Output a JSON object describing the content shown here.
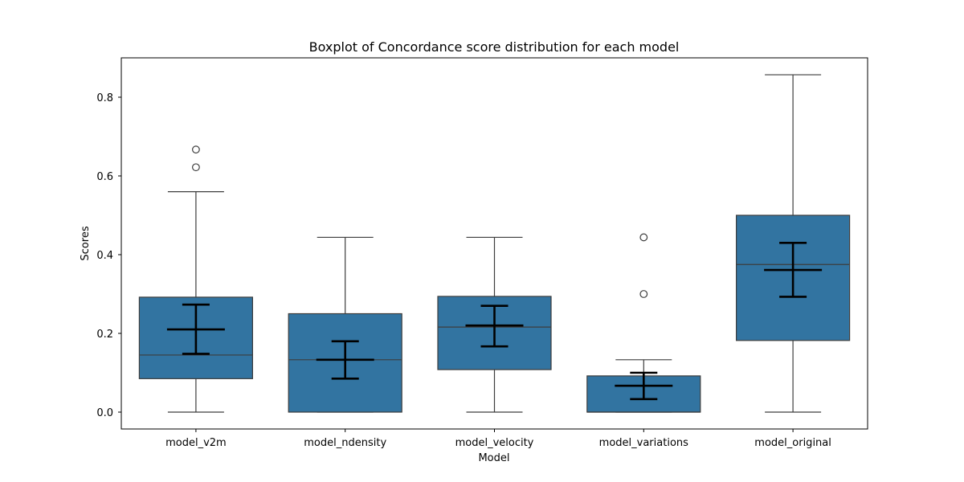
{
  "chart_data": {
    "type": "box",
    "title": "Boxplot of Concordance score distribution for each model",
    "xlabel": "Model",
    "ylabel": "Scores",
    "ylim": [
      -0.042,
      0.9
    ],
    "yticks": [
      "0.0",
      "0.2",
      "0.4",
      "0.6",
      "0.8"
    ],
    "ytick_values": [
      0.0,
      0.2,
      0.4,
      0.6,
      0.8
    ],
    "box_color": "#3274a1",
    "categories": [
      "model_v2m",
      "model_ndensity",
      "model_velocity",
      "model_variations",
      "model_original"
    ],
    "boxes": [
      {
        "name": "model_v2m",
        "whisker_low": 0.0,
        "q1": 0.085,
        "median": 0.145,
        "q3": 0.292,
        "whisker_high": 0.56,
        "outliers": [
          0.622,
          0.667
        ]
      },
      {
        "name": "model_ndensity",
        "whisker_low": 0.0,
        "q1": 0.0,
        "median": 0.133,
        "q3": 0.25,
        "whisker_high": 0.444,
        "outliers": []
      },
      {
        "name": "model_velocity",
        "whisker_low": 0.0,
        "q1": 0.108,
        "median": 0.216,
        "q3": 0.294,
        "whisker_high": 0.444,
        "outliers": []
      },
      {
        "name": "model_variations",
        "whisker_low": 0.0,
        "q1": 0.0,
        "median": 0.0,
        "q3": 0.092,
        "whisker_high": 0.133,
        "outliers": [
          0.3,
          0.444
        ]
      },
      {
        "name": "model_original",
        "whisker_low": 0.0,
        "q1": 0.182,
        "median": 0.375,
        "q3": 0.5,
        "whisker_high": 0.857,
        "outliers": []
      }
    ],
    "mean_error_bars": [
      {
        "name": "model_v2m",
        "mean": 0.21,
        "low": 0.148,
        "high": 0.273
      },
      {
        "name": "model_ndensity",
        "mean": 0.133,
        "low": 0.085,
        "high": 0.18
      },
      {
        "name": "model_velocity",
        "mean": 0.22,
        "low": 0.167,
        "high": 0.27
      },
      {
        "name": "model_variations",
        "mean": 0.067,
        "low": 0.033,
        "high": 0.1
      },
      {
        "name": "model_original",
        "mean": 0.361,
        "low": 0.293,
        "high": 0.43
      }
    ]
  }
}
